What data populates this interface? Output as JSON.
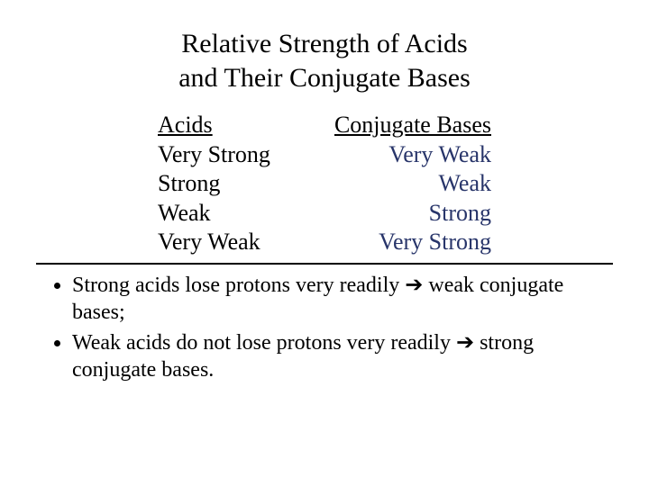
{
  "title_line1": "Relative Strength of Acids",
  "title_line2": "and Their Conjugate Bases",
  "table": {
    "header": {
      "left": "Acids",
      "right": "Conjugate Bases"
    },
    "rows": [
      {
        "left": "Very Strong",
        "right": "Very Weak"
      },
      {
        "left": "Strong",
        "right": "Weak"
      },
      {
        "left": "Weak",
        "right": "Strong"
      },
      {
        "left": "Very Weak",
        "right": "Very Strong"
      }
    ]
  },
  "bullets": [
    {
      "pre": "Strong acids lose protons very readily ",
      "post": " weak conjugate bases;"
    },
    {
      "pre": "Weak acids do not lose protons very readily ",
      "post": " strong conjugate bases."
    }
  ],
  "arrow": "➔",
  "colors": {
    "text": "#000000",
    "accent": "#28356a",
    "bg": "#ffffff",
    "rule": "#000000"
  },
  "fontsizes": {
    "title": 30,
    "body": 26,
    "bullets": 24
  }
}
